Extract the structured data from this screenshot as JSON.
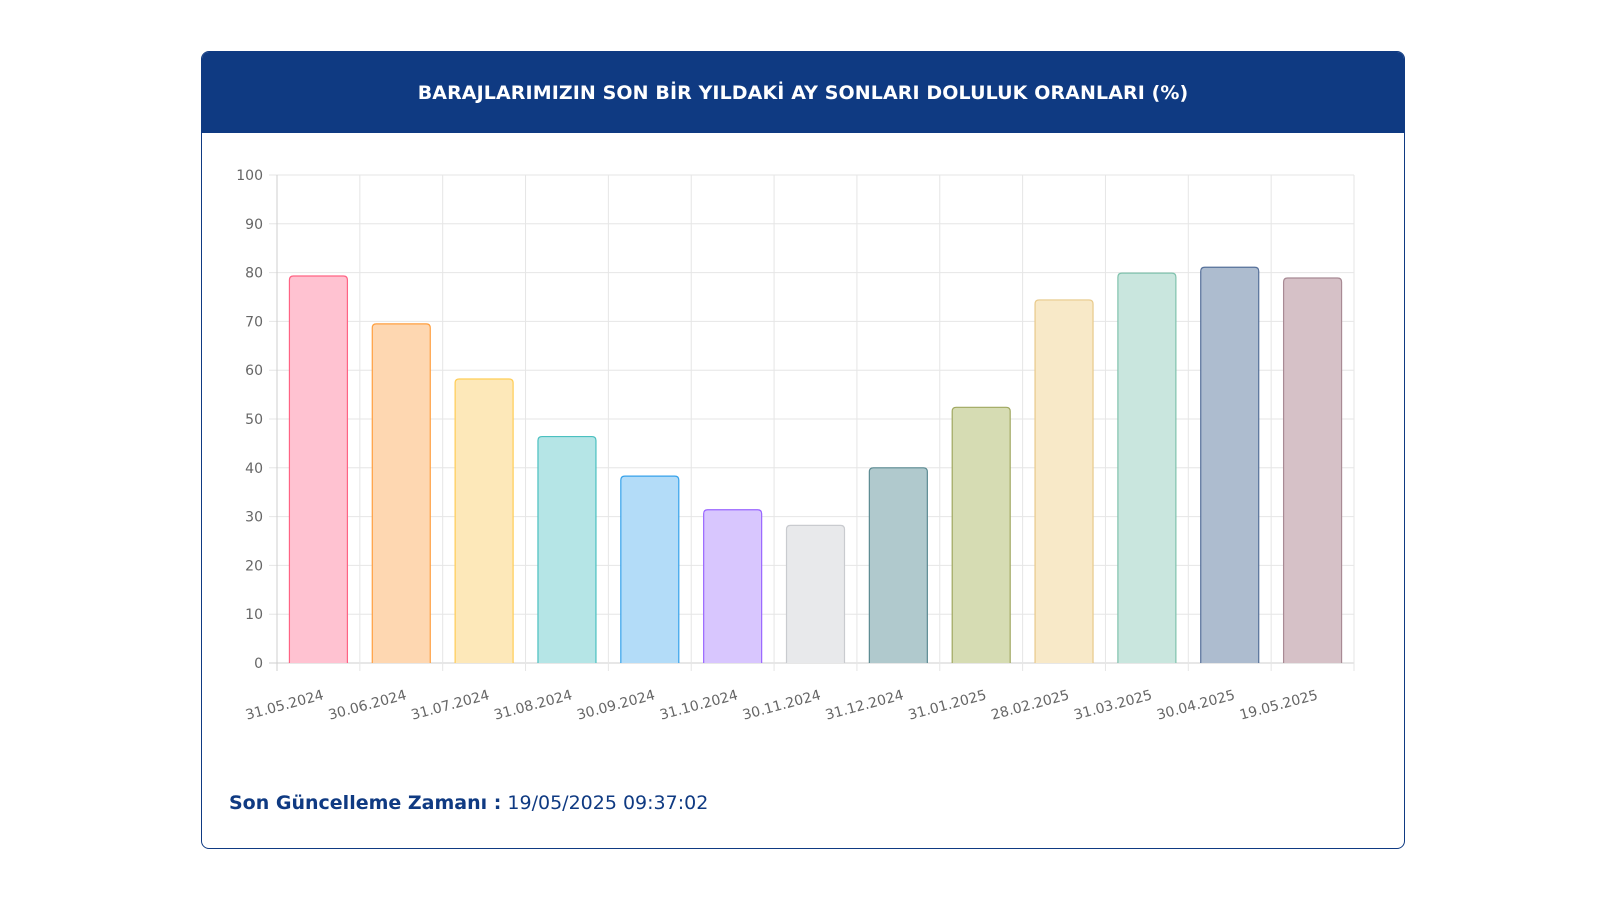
{
  "title": "BARAJLARIMIZIN SON BİR YILDAKİ AY SONLARI DOLULUK ORANLARI (%)",
  "footer": {
    "label": "Son Güncelleme Zamanı :",
    "value": "19/05/2025 09:37:02"
  },
  "chart_data": {
    "type": "bar",
    "title": "BARAJLARIMIZIN SON BİR YILDAKİ AY SONLARI DOLULUK ORANLARI (%)",
    "xlabel": "",
    "ylabel": "",
    "ylim": [
      0,
      100
    ],
    "yticks": [
      0,
      10,
      20,
      30,
      40,
      50,
      60,
      70,
      80,
      90,
      100
    ],
    "grid": true,
    "legend": "none",
    "categories": [
      "31.05.2024",
      "30.06.2024",
      "31.07.2024",
      "31.08.2024",
      "30.09.2024",
      "31.10.2024",
      "30.11.2024",
      "31.12.2024",
      "31.01.2025",
      "28.02.2025",
      "31.03.2025",
      "30.04.2025",
      "19.05.2025"
    ],
    "values": [
      79.3,
      69.5,
      58.2,
      46.4,
      38.3,
      31.4,
      28.2,
      40.0,
      52.4,
      74.4,
      79.9,
      81.1,
      78.9
    ],
    "fill_colors": [
      "#ffc2d1",
      "#fed7b1",
      "#fde8b9",
      "#b5e5e6",
      "#b3dcf8",
      "#d8c6fe",
      "#e8e9eb",
      "#b0c9cd",
      "#d6dcb3",
      "#f8e9c8",
      "#c9e6de",
      "#adbccf",
      "#d6c1c7"
    ],
    "border_colors": [
      "#ff6384",
      "#ff9f40",
      "#ffcd56",
      "#4bc0c0",
      "#36a2eb",
      "#9966ff",
      "#c9cbcf",
      "#5b8a92",
      "#a0a860",
      "#e8c98a",
      "#80c2ad",
      "#56709a",
      "#a88a94"
    ]
  }
}
